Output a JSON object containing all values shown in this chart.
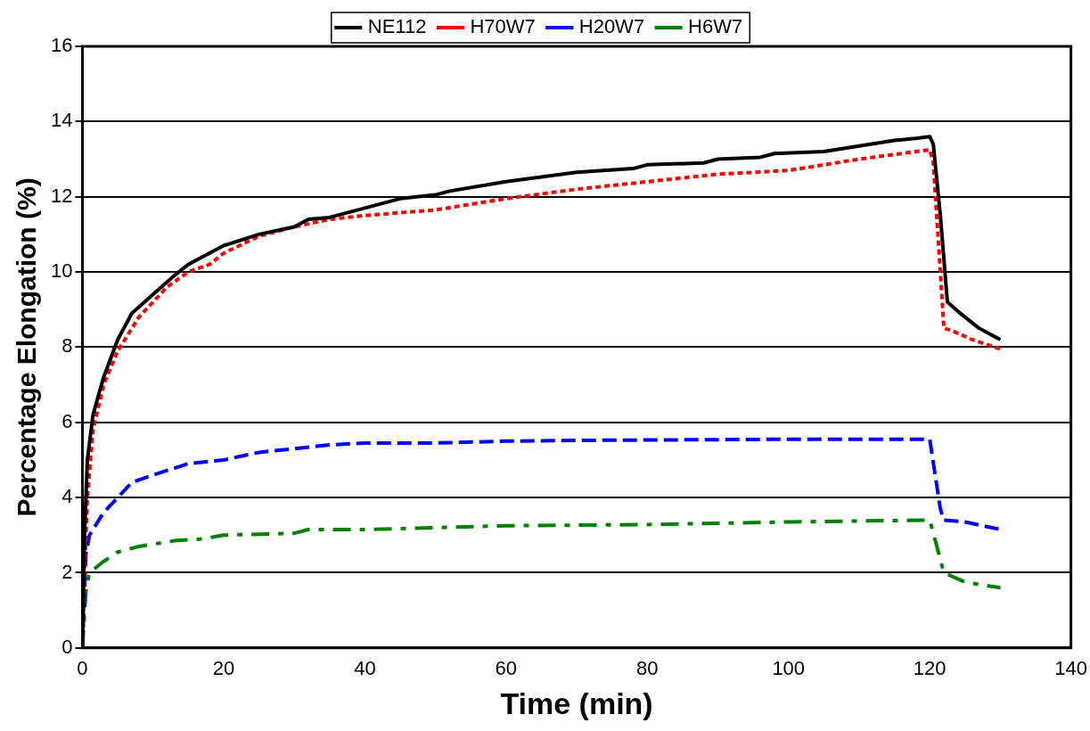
{
  "chart_data": {
    "type": "line",
    "xlabel": "Time (min)",
    "ylabel": "Percentage Elongation (%)",
    "xlim": [
      0,
      140
    ],
    "xticks": [
      0,
      20,
      40,
      60,
      80,
      100,
      120,
      140
    ],
    "ylim": [
      0,
      16
    ],
    "yticks": [
      0,
      2,
      4,
      6,
      8,
      10,
      12,
      14,
      16
    ],
    "grid": "y",
    "legend": "top",
    "marker": "none",
    "series": [
      {
        "name": "NE112",
        "color": "#000000",
        "line_style": "solid",
        "x": [
          0,
          0.3,
          0.7,
          1.5,
          3,
          5,
          7,
          10,
          13,
          15,
          18,
          20,
          25,
          30,
          32,
          35,
          40,
          45,
          50,
          52,
          60,
          70,
          78,
          80,
          88,
          90,
          96,
          98,
          105,
          110,
          115,
          118,
          120,
          120.5,
          121.5,
          122.5,
          124,
          127,
          130
        ],
        "values": [
          0,
          3,
          5,
          6.2,
          7.2,
          8.2,
          8.9,
          9.4,
          9.9,
          10.2,
          10.5,
          10.7,
          11,
          11.2,
          11.4,
          11.45,
          11.7,
          11.95,
          12.05,
          12.15,
          12.4,
          12.65,
          12.75,
          12.85,
          12.9,
          13,
          13.05,
          13.15,
          13.2,
          13.35,
          13.5,
          13.55,
          13.6,
          13.4,
          11.5,
          9.2,
          8.95,
          8.5,
          8.2
        ]
      },
      {
        "name": "H70W7",
        "color": "#ff0000",
        "line_style": "dotted",
        "x": [
          0,
          0.3,
          0.7,
          1.5,
          3,
          5,
          8,
          12,
          15,
          18,
          20,
          25,
          30,
          35,
          40,
          50,
          60,
          70,
          80,
          85,
          90,
          100,
          110,
          118,
          120,
          120.5,
          121.5,
          122,
          123,
          126,
          130
        ],
        "values": [
          0,
          2,
          4,
          5.8,
          7,
          7.9,
          8.8,
          9.6,
          10,
          10.2,
          10.5,
          10.95,
          11.2,
          11.4,
          11.5,
          11.65,
          11.95,
          12.2,
          12.4,
          12.5,
          12.6,
          12.7,
          13,
          13.2,
          13.25,
          12.9,
          10,
          8.5,
          8.45,
          8.2,
          7.95
        ]
      },
      {
        "name": "H20W7",
        "color": "#0000ff",
        "line_style": "dashed",
        "x": [
          0,
          0.5,
          1,
          3,
          7,
          10,
          15,
          20,
          25,
          30,
          35,
          40,
          50,
          60,
          70,
          80,
          100,
          120,
          121.5,
          122,
          125,
          130
        ],
        "values": [
          0,
          2.5,
          3,
          3.6,
          4.4,
          4.6,
          4.9,
          5,
          5.2,
          5.3,
          5.4,
          5.45,
          5.45,
          5.5,
          5.52,
          5.53,
          5.55,
          5.55,
          3.7,
          3.4,
          3.35,
          3.15
        ]
      },
      {
        "name": "H6W7",
        "color": "#008000",
        "line_style": "dashdot",
        "x": [
          0,
          0.5,
          1,
          3,
          5,
          8,
          13,
          17,
          20,
          30,
          32,
          40,
          50,
          60,
          80,
          100,
          120,
          122,
          125,
          130
        ],
        "values": [
          0,
          1.5,
          2,
          2.3,
          2.55,
          2.7,
          2.85,
          2.9,
          3,
          3.05,
          3.15,
          3.15,
          3.2,
          3.25,
          3.28,
          3.35,
          3.4,
          2,
          1.75,
          1.6
        ]
      }
    ]
  }
}
